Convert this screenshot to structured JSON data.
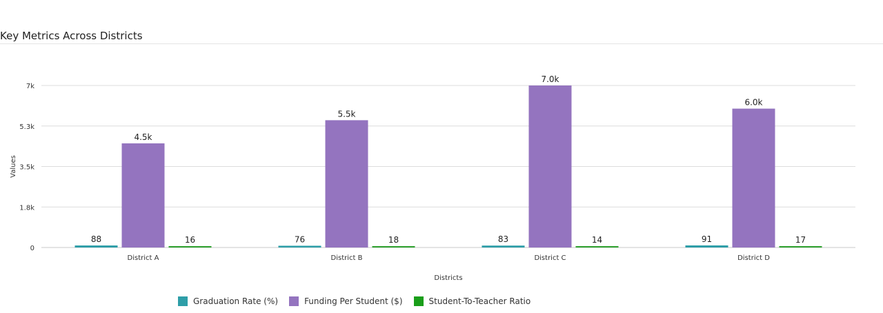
{
  "title": "Key Metrics Across Districts",
  "chart_data": {
    "type": "bar",
    "categories": [
      "District A",
      "District B",
      "District C",
      "District D"
    ],
    "series": [
      {
        "name": "Graduation Rate (%)",
        "values": [
          88,
          76,
          83,
          91
        ],
        "labels": [
          "88",
          "76",
          "83",
          "91"
        ],
        "color": "#2e9ea8"
      },
      {
        "name": "Funding Per Student ($)",
        "values": [
          4500,
          5500,
          7000,
          6000
        ],
        "labels": [
          "4.5k",
          "5.5k",
          "7.0k",
          "6.0k"
        ],
        "color": "#9474bf"
      },
      {
        "name": "Student-To-Teacher Ratio",
        "values": [
          16,
          18,
          14,
          17
        ],
        "labels": [
          "16",
          "18",
          "14",
          "17"
        ],
        "color": "#2ca02c"
      }
    ],
    "xlabel": "Districts",
    "ylabel": "Values",
    "ylim": [
      0,
      7000
    ],
    "yticks": [
      0,
      1750,
      3500,
      5250,
      7000
    ],
    "ytick_labels": [
      "0",
      "1.8k",
      "3.5k",
      "5.3k",
      "7k"
    ],
    "grid": true,
    "legend_position": "bottom"
  }
}
